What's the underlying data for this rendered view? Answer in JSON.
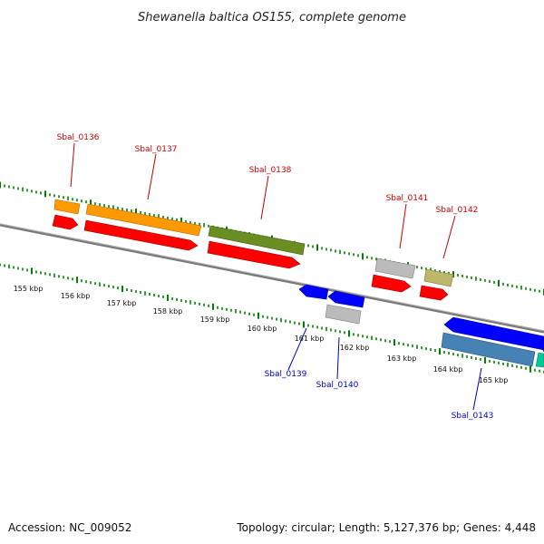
{
  "title": "Shewanella baltica OS155, complete genome",
  "footer": {
    "accession": "Accession: NC_009052",
    "info": "Topology: circular; Length: 5,127,376 bp; Genes: 4,448"
  },
  "scale_labels": [
    "155 kbp",
    "156 kbp",
    "157 kbp",
    "158 kbp",
    "159 kbp",
    "160 kbp",
    "161 kbp",
    "162 kbp",
    "163 kbp",
    "164 kbp",
    "165 kbp"
  ],
  "gene_labels_forward": [
    "Sbal_0136",
    "Sbal_0137",
    "Sbal_0138",
    "Sbal_0141",
    "Sbal_0142"
  ],
  "gene_labels_reverse": [
    "Sbal_0139",
    "Sbal_0140",
    "Sbal_0143"
  ],
  "colors": {
    "backbone": "#808080",
    "tick": "#008000",
    "forward_label": "#cc0000",
    "reverse_label": "#0000cc",
    "cds_forward": "#ff0000",
    "cds_reverse": "#0000ff",
    "orange": "#ff9900",
    "olive": "#6b8e23",
    "gray": "#bbbbbb",
    "khaki": "#bdb76b",
    "steelblue": "#4682b4",
    "teal": "#00c896"
  }
}
